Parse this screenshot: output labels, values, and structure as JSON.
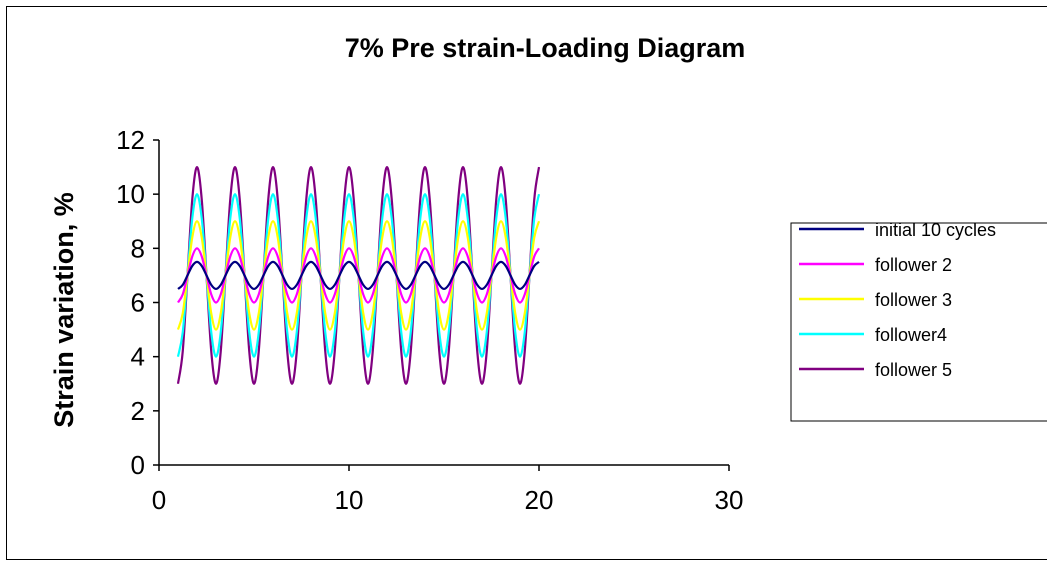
{
  "chart_data": {
    "type": "line",
    "title": "7% Pre strain-Loading Diagram",
    "xlabel": "",
    "ylabel": "Strain variation, %",
    "xlim": [
      0,
      30
    ],
    "ylim": [
      0,
      12
    ],
    "x_ticks": [
      "0",
      "10",
      "20",
      "30"
    ],
    "y_ticks": [
      "0",
      "2",
      "4",
      "6",
      "8",
      "10",
      "12"
    ],
    "grid": false,
    "legend_position": "right",
    "x": [
      1,
      1.25,
      1.5,
      1.75,
      2,
      2.25,
      2.5,
      2.75,
      3,
      3.25,
      3.5,
      3.75,
      4,
      4.25,
      4.5,
      4.75,
      5,
      5.25,
      5.5,
      5.75,
      6,
      6.25,
      6.5,
      6.75,
      7,
      7.25,
      7.5,
      7.75,
      8,
      8.25,
      8.5,
      8.75,
      9,
      9.25,
      9.5,
      9.75,
      10,
      10.25,
      10.5,
      10.75,
      11,
      11.25,
      11.5,
      11.75,
      12,
      12.25,
      12.5,
      12.75,
      13,
      13.25,
      13.5,
      13.75,
      14,
      14.25,
      14.5,
      14.75,
      15,
      15.25,
      15.5,
      15.75,
      16,
      16.25,
      16.5,
      16.75,
      17,
      17.25,
      17.5,
      17.75,
      18,
      18.25,
      18.5,
      18.75,
      19,
      19.25,
      19.5,
      19.75,
      20
    ],
    "series": [
      {
        "name": "initial 10 cycles",
        "color": "#000080",
        "values": [
          6.5,
          6.65,
          7,
          7.35,
          7.5,
          7.35,
          7,
          6.65,
          6.5,
          6.65,
          7,
          7.35,
          7.5,
          7.35,
          7,
          6.65,
          6.5,
          6.65,
          7,
          7.35,
          7.5,
          7.35,
          7,
          6.65,
          6.5,
          6.65,
          7,
          7.35,
          7.5,
          7.35,
          7,
          6.65,
          6.5,
          6.65,
          7,
          7.35,
          7.5,
          7.35,
          7,
          6.65,
          6.5,
          6.65,
          7,
          7.35,
          7.5,
          7.35,
          7,
          6.65,
          6.5,
          6.65,
          7,
          7.35,
          7.5,
          7.35,
          7,
          6.65,
          6.5,
          6.65,
          7,
          7.35,
          7.5,
          7.35,
          7,
          6.65,
          6.5,
          6.65,
          7,
          7.35,
          7.5,
          7.35,
          7,
          6.65,
          6.5,
          6.65,
          7,
          7.35,
          7.5
        ]
      },
      {
        "name": "follower 2",
        "color": "#ff00ff",
        "values": [
          6,
          6.3,
          7,
          7.7,
          8,
          7.7,
          7,
          6.3,
          6,
          6.3,
          7,
          7.7,
          8,
          7.7,
          7,
          6.3,
          6,
          6.3,
          7,
          7.7,
          8,
          7.7,
          7,
          6.3,
          6,
          6.3,
          7,
          7.7,
          8,
          7.7,
          7,
          6.3,
          6,
          6.3,
          7,
          7.7,
          8,
          7.7,
          7,
          6.3,
          6,
          6.3,
          7,
          7.7,
          8,
          7.7,
          7,
          6.3,
          6,
          6.3,
          7,
          7.7,
          8,
          7.7,
          7,
          6.3,
          6,
          6.3,
          7,
          7.7,
          8,
          7.7,
          7,
          6.3,
          6,
          6.3,
          7,
          7.7,
          8,
          7.7,
          7,
          6.3,
          6,
          6.3,
          7,
          7.7,
          8
        ]
      },
      {
        "name": "follower 3",
        "color": "#ffff00",
        "values": [
          5,
          5.6,
          7,
          8.4,
          9,
          8.4,
          7,
          5.6,
          5,
          5.6,
          7,
          8.4,
          9,
          8.4,
          7,
          5.6,
          5,
          5.6,
          7,
          8.4,
          9,
          8.4,
          7,
          5.6,
          5,
          5.6,
          7,
          8.4,
          9,
          8.4,
          7,
          5.6,
          5,
          5.6,
          7,
          8.4,
          9,
          8.4,
          7,
          5.6,
          5,
          5.6,
          7,
          8.4,
          9,
          8.4,
          7,
          5.6,
          5,
          5.6,
          7,
          8.4,
          9,
          8.4,
          7,
          5.6,
          5,
          5.6,
          7,
          8.4,
          9,
          8.4,
          7,
          5.6,
          5,
          5.6,
          7,
          8.4,
          9,
          8.4,
          7,
          5.6,
          5,
          5.6,
          7,
          8.4,
          9
        ]
      },
      {
        "name": "follower4",
        "color": "#00ffff",
        "values": [
          4,
          4.9,
          7,
          9.1,
          10,
          9.1,
          7,
          4.9,
          4,
          4.9,
          7,
          9.1,
          10,
          9.1,
          7,
          4.9,
          4,
          4.9,
          7,
          9.1,
          10,
          9.1,
          7,
          4.9,
          4,
          4.9,
          7,
          9.1,
          10,
          9.1,
          7,
          4.9,
          4,
          4.9,
          7,
          9.1,
          10,
          9.1,
          7,
          4.9,
          4,
          4.9,
          7,
          9.1,
          10,
          9.1,
          7,
          4.9,
          4,
          4.9,
          7,
          9.1,
          10,
          9.1,
          7,
          4.9,
          4,
          4.9,
          7,
          9.1,
          10,
          9.1,
          7,
          4.9,
          4,
          4.9,
          7,
          9.1,
          10,
          9.1,
          7,
          4.9,
          4,
          4.9,
          7,
          9.1,
          10
        ]
      },
      {
        "name": "follower 5",
        "color": "#800080",
        "values": [
          3,
          4.2,
          7,
          9.8,
          11,
          9.8,
          7,
          4.2,
          3,
          4.2,
          7,
          9.8,
          11,
          9.8,
          7,
          4.2,
          3,
          4.2,
          7,
          9.8,
          11,
          9.8,
          7,
          4.2,
          3,
          4.2,
          7,
          9.8,
          11,
          9.8,
          7,
          4.2,
          3,
          4.2,
          7,
          9.8,
          11,
          9.8,
          7,
          4.2,
          3,
          4.2,
          7,
          9.8,
          11,
          9.8,
          7,
          4.2,
          3,
          4.2,
          7,
          9.8,
          11,
          9.8,
          7,
          4.2,
          3,
          4.2,
          7,
          9.8,
          11,
          9.8,
          7,
          4.2,
          3,
          4.2,
          7,
          9.8,
          11,
          9.8,
          7,
          4.2,
          3,
          4.2,
          7,
          9.8,
          11
        ]
      }
    ]
  }
}
